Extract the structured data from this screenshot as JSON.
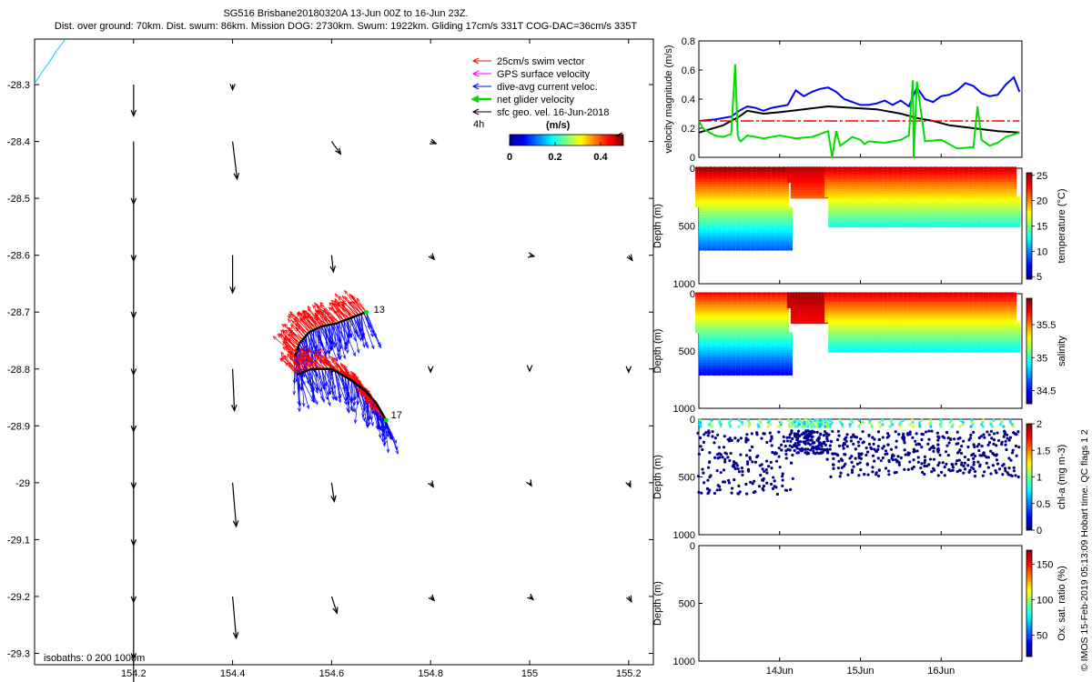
{
  "title": {
    "line1": "SG516 Brisbane20180320A 13-Jun 00Z to 16-Jun 23Z.",
    "line2": "Dist. over ground: 70km. Dist. swum: 86km. Mission DOG: 2730km. Swum: 1922km. Gliding 17cm/s 331T COG-DAC=36cm/s 335T"
  },
  "colors": {
    "swim": "#ff0000",
    "gps": "#ff00ff",
    "dac": "#0000ff",
    "net": "#00dd00",
    "sfc": "#000000",
    "track": "#000000",
    "isobath": "#00c8ff"
  },
  "icons": [
    "arrow-left-icon"
  ],
  "chart_data": [
    {
      "type": "vector-map",
      "xlim": [
        154.0,
        155.25
      ],
      "ylim": [
        -29.32,
        -28.22
      ],
      "x_ticks": [
        154.2,
        154.4,
        154.6,
        154.8,
        155,
        155.2
      ],
      "x_tick_labels": [
        "154.2",
        "154.4",
        "154.6",
        "154.8",
        "155",
        "155.2"
      ],
      "y_ticks": [
        -28.3,
        -28.4,
        -28.5,
        -28.6,
        -28.7,
        -28.8,
        -28.9,
        -29,
        -29.1,
        -29.2,
        -29.3
      ],
      "y_tick_labels": [
        "-28.3",
        "-28.4",
        "-28.5",
        "-28.6",
        "-28.7",
        "-28.8",
        "-28.9",
        "-29",
        "-29.1",
        "-29.2",
        "-29.3"
      ],
      "legend": {
        "placement": "top-right",
        "items": [
          {
            "label": "25cm/s swim vector",
            "color": "#ff0000"
          },
          {
            "label": "GPS surface velocity",
            "color": "#ff00ff"
          },
          {
            "label": "dive-avg current veloc.",
            "color": "#0000ff"
          },
          {
            "label": "net glider velocity",
            "color": "#00dd00"
          },
          {
            "label": "sfc geo. vel. 16-Jun-2018",
            "color": "#000000"
          }
        ],
        "time_label": "4h",
        "colorbar_title": "(m/s)",
        "colorbar_ticks": [
          "0",
          "0.2",
          "0.4"
        ]
      },
      "geostrophic_vectors": [
        {
          "lon": 154.2,
          "lat": -28.3,
          "u": 0.0,
          "v": -0.3
        },
        {
          "lon": 154.4,
          "lat": -28.3,
          "u": 0.0,
          "v": -0.05
        },
        {
          "lon": 154.2,
          "lat": -28.4,
          "u": 0.0,
          "v": -0.6
        },
        {
          "lon": 154.4,
          "lat": -28.4,
          "u": 0.05,
          "v": -0.36
        },
        {
          "lon": 154.6,
          "lat": -28.4,
          "u": 0.1,
          "v": -0.12
        },
        {
          "lon": 154.8,
          "lat": -28.4,
          "u": 0.06,
          "v": -0.02
        },
        {
          "lon": 154.2,
          "lat": -28.5,
          "u": 0.0,
          "v": -0.6
        },
        {
          "lon": 154.2,
          "lat": -28.6,
          "u": 0.0,
          "v": -0.6
        },
        {
          "lon": 154.4,
          "lat": -28.6,
          "u": 0.0,
          "v": -0.36
        },
        {
          "lon": 154.6,
          "lat": -28.6,
          "u": 0.02,
          "v": -0.16
        },
        {
          "lon": 154.8,
          "lat": -28.6,
          "u": 0.04,
          "v": -0.04
        },
        {
          "lon": 155.0,
          "lat": -28.6,
          "u": 0.05,
          "v": -0.01
        },
        {
          "lon": 155.2,
          "lat": -28.6,
          "u": 0.04,
          "v": -0.05
        },
        {
          "lon": 154.2,
          "lat": -28.7,
          "u": 0.0,
          "v": -0.6
        },
        {
          "lon": 154.2,
          "lat": -28.8,
          "u": 0.0,
          "v": -0.6
        },
        {
          "lon": 154.4,
          "lat": -28.8,
          "u": 0.02,
          "v": -0.4
        },
        {
          "lon": 154.6,
          "lat": -28.8,
          "u": 0.0,
          "v": -0.05
        },
        {
          "lon": 154.8,
          "lat": -28.8,
          "u": 0.0,
          "v": -0.03
        },
        {
          "lon": 155.0,
          "lat": -28.8,
          "u": 0.0,
          "v": -0.02
        },
        {
          "lon": 155.2,
          "lat": -28.8,
          "u": 0.0,
          "v": -0.03
        },
        {
          "lon": 154.2,
          "lat": -28.9,
          "u": 0.0,
          "v": -0.6
        },
        {
          "lon": 154.2,
          "lat": -29.0,
          "u": 0.0,
          "v": -0.6
        },
        {
          "lon": 154.4,
          "lat": -29.0,
          "u": 0.04,
          "v": -0.42
        },
        {
          "lon": 154.6,
          "lat": -29.0,
          "u": 0.03,
          "v": -0.18
        },
        {
          "lon": 154.8,
          "lat": -29.0,
          "u": 0.03,
          "v": -0.04
        },
        {
          "lon": 155.0,
          "lat": -29.0,
          "u": 0.02,
          "v": -0.03
        },
        {
          "lon": 155.2,
          "lat": -29.0,
          "u": 0.02,
          "v": -0.04
        },
        {
          "lon": 154.2,
          "lat": -29.1,
          "u": 0.0,
          "v": -0.6
        },
        {
          "lon": 154.2,
          "lat": -29.2,
          "u": 0.0,
          "v": -0.6
        },
        {
          "lon": 154.4,
          "lat": -29.2,
          "u": 0.04,
          "v": -0.4
        },
        {
          "lon": 154.6,
          "lat": -29.2,
          "u": 0.06,
          "v": -0.16
        },
        {
          "lon": 154.8,
          "lat": -29.2,
          "u": 0.04,
          "v": -0.04
        },
        {
          "lon": 155.0,
          "lat": -29.2,
          "u": 0.04,
          "v": -0.03
        },
        {
          "lon": 155.2,
          "lat": -29.2,
          "u": 0.03,
          "v": -0.05
        },
        {
          "lon": 154.2,
          "lat": -29.3,
          "u": 0.0,
          "v": -0.4
        }
      ],
      "track_upper": {
        "lon": [
          154.67,
          154.64,
          154.61,
          154.58,
          154.555,
          154.535,
          154.525
        ],
        "lat": [
          -28.7,
          -28.71,
          -28.72,
          -28.725,
          -28.735,
          -28.755,
          -28.78
        ]
      },
      "track_lower": {
        "lon": [
          154.53,
          154.56,
          154.6,
          154.64,
          154.67,
          154.69,
          154.71
        ],
        "lat": [
          -28.81,
          -28.8,
          -28.8,
          -28.82,
          -28.84,
          -28.86,
          -28.89
        ]
      },
      "labels": [
        {
          "text": "13",
          "lon": 154.685,
          "lat": -28.695
        },
        {
          "text": "17",
          "lon": 154.72,
          "lat": -28.88
        }
      ],
      "isobaths_label": "isobaths: 0   200  1000m"
    },
    {
      "type": "line",
      "ylabel": "velocity magnitude (m/s)",
      "ylim": [
        0,
        0.8
      ],
      "y_ticks": [
        0,
        0.2,
        0.4,
        0.6,
        0.8
      ],
      "y_tick_labels": [
        "0",
        "0.2",
        "0.4",
        "0.6",
        "0.8"
      ],
      "xlim": [
        13.0,
        17.0
      ],
      "series": [
        {
          "name": "dive-avg current",
          "color": "#0000ff",
          "x": [
            13.0,
            13.2,
            13.4,
            13.5,
            13.6,
            13.7,
            13.8,
            13.9,
            14.0,
            14.1,
            14.2,
            14.3,
            14.4,
            14.5,
            14.6,
            14.7,
            14.8,
            14.9,
            15.0,
            15.1,
            15.2,
            15.3,
            15.4,
            15.5,
            15.6,
            15.7,
            15.8,
            15.9,
            16.0,
            16.1,
            16.2,
            16.3,
            16.4,
            16.5,
            16.6,
            16.7,
            16.8,
            16.9,
            16.97
          ],
          "y": [
            0.25,
            0.26,
            0.28,
            0.32,
            0.35,
            0.34,
            0.32,
            0.34,
            0.35,
            0.36,
            0.46,
            0.42,
            0.45,
            0.47,
            0.48,
            0.45,
            0.4,
            0.38,
            0.36,
            0.36,
            0.37,
            0.39,
            0.36,
            0.39,
            0.35,
            0.48,
            0.4,
            0.38,
            0.42,
            0.43,
            0.46,
            0.51,
            0.49,
            0.44,
            0.42,
            0.43,
            0.5,
            0.55,
            0.45
          ]
        },
        {
          "name": "sfc current",
          "color": "#000000",
          "x": [
            13.0,
            13.3,
            13.5,
            13.6,
            13.8,
            14.0,
            14.3,
            14.6,
            14.9,
            15.2,
            15.5,
            15.7,
            15.9,
            16.1,
            16.4,
            16.7,
            16.97
          ],
          "y": [
            0.17,
            0.22,
            0.28,
            0.32,
            0.3,
            0.31,
            0.33,
            0.35,
            0.34,
            0.33,
            0.3,
            0.27,
            0.25,
            0.22,
            0.2,
            0.18,
            0.17
          ]
        },
        {
          "name": "25cm/s swim",
          "color": "#ff0000",
          "style": "dashed",
          "x": [
            13.0,
            16.97
          ],
          "y": [
            0.25,
            0.25
          ]
        },
        {
          "name": "net glider velocity",
          "color": "#00dd00",
          "x": [
            13.0,
            13.05,
            13.1,
            13.2,
            13.3,
            13.4,
            13.45,
            13.48,
            13.5,
            13.52,
            13.6,
            13.8,
            14.0,
            14.2,
            14.4,
            14.6,
            14.65,
            14.7,
            14.75,
            14.8,
            14.9,
            15.0,
            15.05,
            15.1,
            15.3,
            15.5,
            15.6,
            15.65,
            15.66,
            15.7,
            15.8,
            16.0,
            16.2,
            16.4,
            16.45,
            16.5,
            16.6,
            16.7,
            16.8,
            16.97
          ],
          "y": [
            0.25,
            0.2,
            0.18,
            0.15,
            0.14,
            0.16,
            0.64,
            0.16,
            0.12,
            0.11,
            0.15,
            0.13,
            0.15,
            0.13,
            0.14,
            0.18,
            0.0,
            0.18,
            0.08,
            0.1,
            0.14,
            0.12,
            0.09,
            0.11,
            0.1,
            0.12,
            0.15,
            0.53,
            0.0,
            0.52,
            0.11,
            0.12,
            0.06,
            0.07,
            0.35,
            0.12,
            0.08,
            0.1,
            0.14,
            0.17
          ]
        }
      ]
    },
    {
      "type": "scatter",
      "ylabel": "Depth (m)",
      "ylim": [
        1000,
        0
      ],
      "y_ticks": [
        0,
        500,
        1000
      ],
      "y_tick_labels": [
        "0",
        "500",
        "1000"
      ],
      "colorbar": {
        "label": "temperature (°C)",
        "range": [
          4.5,
          25.5
        ],
        "ticks": [
          "5",
          "10",
          "15",
          "20",
          "25"
        ],
        "values": [
          5,
          10,
          15,
          20,
          25
        ]
      },
      "profile_groups": [
        {
          "t_start": 13.0,
          "t_end": 14.15,
          "n": 19,
          "max_depth": 700,
          "surface": 25,
          "deep": 9
        },
        {
          "t_start": 14.15,
          "t_end": 14.6,
          "n": 14,
          "max_depth": 250,
          "surface": 24.5,
          "deep": 21
        },
        {
          "t_start": 14.6,
          "t_end": 16.97,
          "n": 38,
          "max_depth": 500,
          "surface": 24,
          "deep": 13
        }
      ]
    },
    {
      "type": "scatter",
      "ylabel": "Depth (m)",
      "ylim": [
        1000,
        0
      ],
      "y_ticks": [
        0,
        500,
        1000
      ],
      "y_tick_labels": [
        "0",
        "500",
        "1000"
      ],
      "colorbar": {
        "label": "salinity",
        "range": [
          34.3,
          35.9
        ],
        "ticks": [
          "34.5",
          "35",
          "35.5"
        ],
        "values": [
          34.5,
          35,
          35.5
        ]
      },
      "profile_groups": [
        {
          "t_start": 13.0,
          "t_end": 14.15,
          "n": 19,
          "max_depth": 700,
          "surface": 35.7,
          "deep": 34.5
        },
        {
          "t_start": 14.15,
          "t_end": 14.6,
          "n": 14,
          "max_depth": 250,
          "surface": 35.85,
          "deep": 35.7
        },
        {
          "t_start": 14.6,
          "t_end": 16.97,
          "n": 38,
          "max_depth": 500,
          "surface": 35.75,
          "deep": 34.9
        }
      ]
    },
    {
      "type": "scatter",
      "ylabel": "Depth (m)",
      "ylim": [
        1000,
        0
      ],
      "y_ticks": [
        0,
        500,
        1000
      ],
      "y_tick_labels": [
        "0",
        "500",
        "1000"
      ],
      "colorbar": {
        "label": "chl-a (mg m-3)",
        "range": [
          0,
          2
        ],
        "ticks": [
          "0",
          "0.5",
          "1",
          "1.5",
          "2"
        ],
        "values": [
          0,
          0.5,
          1,
          1.5,
          2
        ]
      },
      "profile_groups": [
        {
          "t_start": 13.0,
          "t_end": 14.15,
          "n": 19,
          "max_depth": 650
        },
        {
          "t_start": 14.15,
          "t_end": 14.6,
          "n": 14,
          "max_depth": 300
        },
        {
          "t_start": 14.6,
          "t_end": 16.97,
          "n": 38,
          "max_depth": 500
        }
      ]
    },
    {
      "type": "scatter",
      "ylabel": "Depth (m)",
      "ylim": [
        1000,
        0
      ],
      "y_ticks": [
        0,
        500,
        1000
      ],
      "y_tick_labels": [
        "0",
        "500",
        "1000"
      ],
      "x_ticks": [
        14,
        15,
        16
      ],
      "x_tick_labels": [
        "14Jun",
        "15Jun",
        "16Jun"
      ],
      "colorbar": {
        "label": "Ox. sat. ratio (%)",
        "range": [
          20,
          170
        ],
        "ticks": [
          "50",
          "100",
          "150"
        ],
        "values": [
          50,
          100,
          150
        ]
      },
      "points": []
    }
  ],
  "footer_text": "© IMOS 15-Feb-2019 05:13:09 Hobart time. QC flags 1  2"
}
